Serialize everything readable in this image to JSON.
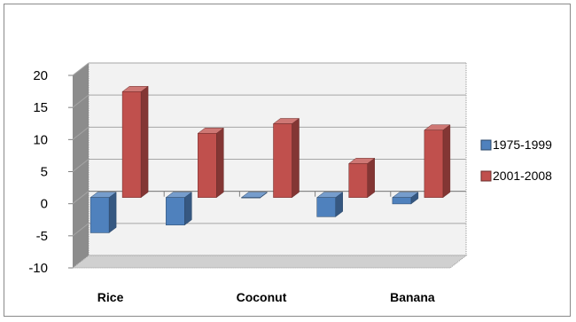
{
  "chart_data": {
    "type": "bar",
    "title": "",
    "xlabel": "",
    "ylabel": "",
    "categories": [
      "Rice",
      "",
      "Coconut",
      "",
      "Banana"
    ],
    "series": [
      {
        "name": "1975-1999",
        "values": [
          -5.5,
          -4.3,
          0,
          -3.0,
          -1.0
        ]
      },
      {
        "name": "2001-2008",
        "values": [
          16.5,
          10.0,
          11.5,
          5.3,
          10.5
        ]
      }
    ],
    "ylim": [
      -10,
      20
    ],
    "yticks": [
      -10,
      -5,
      0,
      5,
      10,
      15,
      20
    ],
    "grid": true,
    "legend_position": "right",
    "colors": {
      "series_1": "#4f81bd",
      "series_2": "#c0504d",
      "wall": "#f2f2f2",
      "floor": "#d0d0d0",
      "side": "#8c8c8c",
      "grid": "#a6a6a6"
    }
  }
}
